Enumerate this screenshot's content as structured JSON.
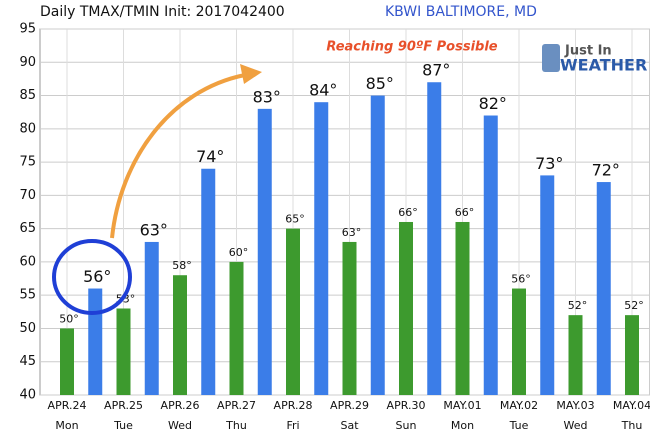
{
  "chart_data": {
    "type": "bar",
    "title": "Daily TMAX/TMIN Init: 2017042400",
    "subtitle": "KBWI BALTIMORE, MD",
    "annotation": "Reaching 90ºF Possible",
    "logo": [
      "Just In",
      "WEATHER"
    ],
    "categories": [
      "APR.24",
      "APR.25",
      "APR.26",
      "APR.27",
      "APR.28",
      "APR.29",
      "APR.30",
      "MAY.01",
      "MAY.02",
      "MAY.03",
      "MAY.04"
    ],
    "day_labels": [
      "Mon",
      "Tue",
      "Wed",
      "Thu",
      "Fri",
      "Sat",
      "Sun",
      "Mon",
      "Tue",
      "Wed",
      "Thu"
    ],
    "series": [
      {
        "name": "TMAX",
        "color": "#3b7de8",
        "values": [
          56,
          63,
          74,
          83,
          84,
          85,
          87,
          82,
          73,
          72,
          null
        ],
        "value_labels": [
          "56°",
          "63°",
          "74°",
          "83°",
          "84°",
          "85°",
          "87°",
          "82°",
          "73°",
          "72°",
          null
        ]
      },
      {
        "name": "TMIN",
        "color": "#3d9a2e",
        "values": [
          50,
          53,
          58,
          60,
          65,
          63,
          66,
          66,
          56,
          52,
          52
        ],
        "value_labels": [
          "50°",
          "53°",
          "58°",
          "60°",
          "65°",
          "63°",
          "66°",
          "66°",
          "56°",
          "52°",
          "52°"
        ]
      }
    ],
    "ylim": [
      40,
      95
    ],
    "yticks": [
      40,
      45,
      50,
      55,
      60,
      65,
      70,
      75,
      80,
      85,
      90,
      95
    ],
    "grid": true
  }
}
